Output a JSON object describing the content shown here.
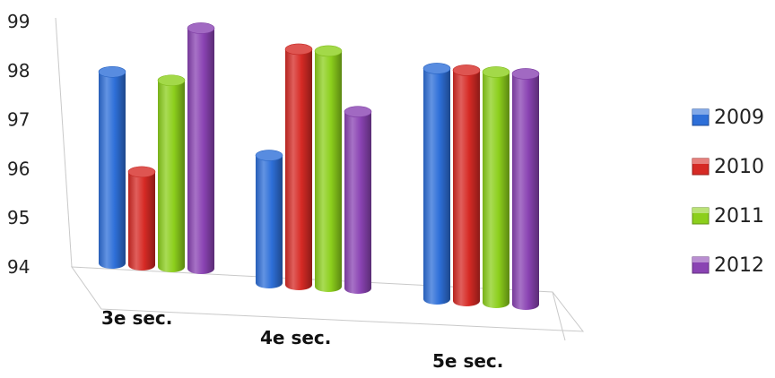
{
  "chart_data": {
    "type": "bar",
    "style": "3d-cylinder",
    "categories": [
      "3e sec.",
      "4e sec.",
      "5e sec."
    ],
    "series": [
      {
        "name": "2009",
        "color": "#2e6fd8",
        "values": [
          97.9,
          96.6,
          98.7
        ]
      },
      {
        "name": "2010",
        "color": "#d62a25",
        "values": [
          95.9,
          98.8,
          98.7
        ]
      },
      {
        "name": "2011",
        "color": "#8ccf1c",
        "values": [
          97.8,
          98.8,
          98.7
        ]
      },
      {
        "name": "2012",
        "color": "#8a43b3",
        "values": [
          98.9,
          97.6,
          98.7
        ]
      }
    ],
    "ylim": [
      94,
      99
    ],
    "yticks": [
      "94",
      "95",
      "96",
      "97",
      "98",
      "99"
    ],
    "title": "",
    "xlabel": "",
    "ylabel": "",
    "legend": "right",
    "grid": false
  }
}
